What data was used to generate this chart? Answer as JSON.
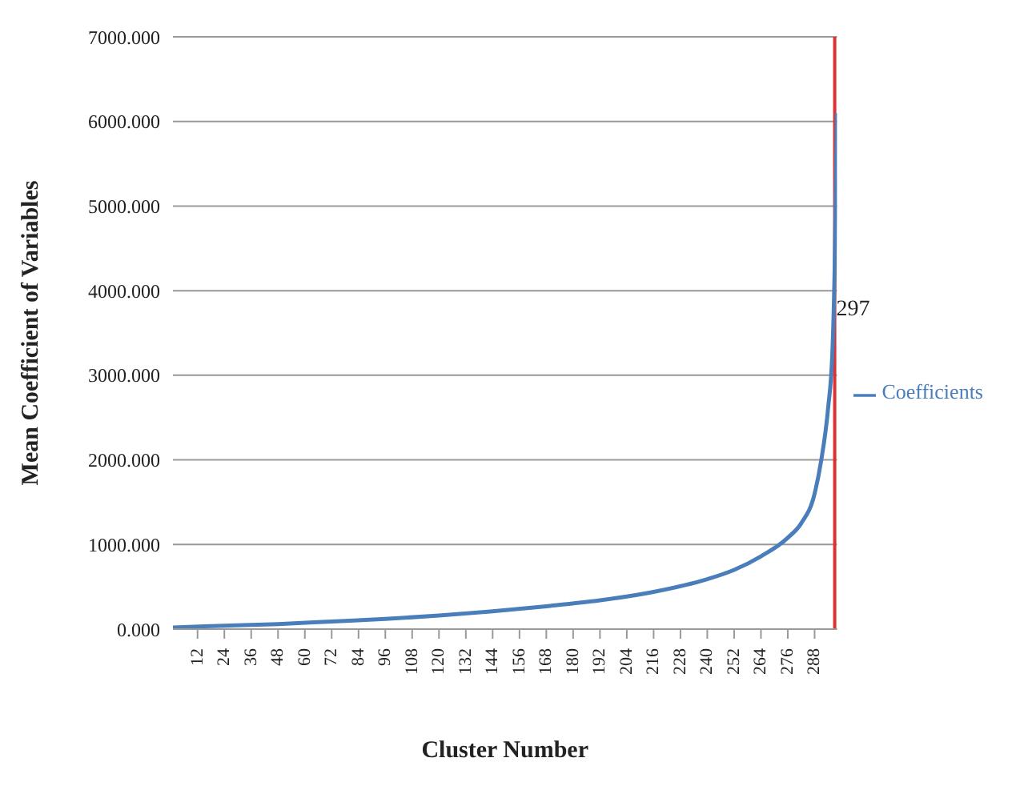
{
  "chart_data": {
    "type": "line",
    "xlabel": "Cluster Number",
    "ylabel": "Mean Coefficient of Variables",
    "x": [
      1,
      24,
      48,
      72,
      96,
      120,
      144,
      168,
      192,
      216,
      240,
      252,
      264,
      276,
      282,
      288,
      291,
      294,
      296,
      297,
      298
    ],
    "series": [
      {
        "name": "Coefficients",
        "color": "#4a7ebb",
        "values": [
          20,
          40,
          60,
          90,
          120,
          160,
          210,
          270,
          340,
          440,
          590,
          700,
          860,
          1080,
          1250,
          1600,
          2000,
          2600,
          3300,
          4300,
          6100
        ]
      }
    ],
    "xlim": [
      1,
      298
    ],
    "xticks": [
      12,
      24,
      36,
      48,
      60,
      72,
      84,
      96,
      108,
      120,
      132,
      144,
      156,
      168,
      180,
      192,
      204,
      216,
      228,
      240,
      252,
      264,
      276,
      288
    ],
    "ylim": [
      0,
      7000
    ],
    "yticks": [
      {
        "value": 0,
        "label": "0.000"
      },
      {
        "value": 1000,
        "label": "1000.000"
      },
      {
        "value": 2000,
        "label": "2000.000"
      },
      {
        "value": 3000,
        "label": "3000.000"
      },
      {
        "value": 4000,
        "label": "4000.000"
      },
      {
        "value": 5000,
        "label": "5000.000"
      },
      {
        "value": 6000,
        "label": "6000.000"
      },
      {
        "value": 7000,
        "label": "7000.000"
      }
    ],
    "ref_lines": [
      {
        "axis": "x",
        "value": 297,
        "label": "297",
        "color": "#e03030"
      }
    ],
    "grid": "y",
    "legend": "right",
    "marker": "none",
    "line_style": "solid"
  }
}
